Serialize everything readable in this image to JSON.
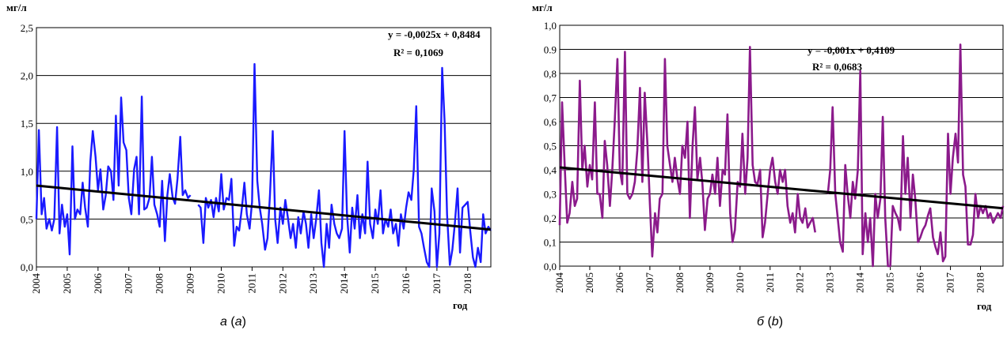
{
  "chart_data": [
    {
      "type": "line",
      "caption": {
        "letter": "а",
        "paren": "(",
        "letter2": "a",
        "close": ")"
      },
      "ylabel": "мг/л",
      "xlabel": "год",
      "ylim": [
        0,
        2.5
      ],
      "xlim": [
        2004,
        2018.75
      ],
      "y_ticks": [
        0,
        0.5,
        1.0,
        1.5,
        2.0,
        2.5
      ],
      "y_tick_labels": [
        "0,0",
        "0,5",
        "1,0",
        "1,5",
        "2,0",
        "2,5"
      ],
      "x_ticks": [
        2004,
        2005,
        2006,
        2007,
        2008,
        2009,
        2010,
        2011,
        2012,
        2013,
        2014,
        2015,
        2016,
        2017,
        2018
      ],
      "x_tick_labels": [
        "2004",
        "2005",
        "2006",
        "2007",
        "2008",
        "2009",
        "2010",
        "2011",
        "2012",
        "2013",
        "2014",
        "2015",
        "2016",
        "2017",
        "2018"
      ],
      "grid": true,
      "series_color": "#1a1aff",
      "trend_color": "#000000",
      "equation": "y = -0,0025x + 0,8484",
      "r2": "R² = 0,1069",
      "trend": {
        "x": [
          2004,
          2018.75
        ],
        "y": [
          0.85,
          0.39
        ]
      },
      "segments": [
        {
          "x": [
            2004.0,
            2004.08,
            2004.17,
            2004.25,
            2004.33,
            2004.42,
            2004.5,
            2004.58,
            2004.67,
            2004.75,
            2004.83,
            2004.92,
            2005.0,
            2005.08,
            2005.17,
            2005.25,
            2005.33,
            2005.42,
            2005.5,
            2005.58,
            2005.67,
            2005.75,
            2005.83,
            2005.92,
            2006.0,
            2006.08,
            2006.17,
            2006.25,
            2006.33,
            2006.42,
            2006.5,
            2006.58,
            2006.67,
            2006.75,
            2006.83,
            2006.92,
            2007.0,
            2007.08,
            2007.17,
            2007.25,
            2007.33,
            2007.42,
            2007.5,
            2007.58,
            2007.67,
            2007.75,
            2007.83,
            2007.92,
            2008.0,
            2008.08,
            2008.17,
            2008.25,
            2008.33,
            2008.42,
            2008.5,
            2008.58,
            2008.67,
            2008.75,
            2008.83,
            2008.92,
            2009.0
          ],
          "y": [
            0.5,
            1.43,
            0.55,
            0.72,
            0.4,
            0.5,
            0.38,
            0.5,
            1.46,
            0.35,
            0.65,
            0.42,
            0.55,
            0.13,
            1.26,
            0.5,
            0.6,
            0.55,
            0.88,
            0.62,
            0.42,
            1.1,
            1.42,
            1.15,
            0.8,
            1.02,
            0.6,
            0.75,
            1.05,
            1.0,
            0.7,
            1.58,
            0.85,
            1.77,
            1.3,
            1.22,
            0.72,
            0.55,
            1.02,
            1.15,
            0.55,
            1.78,
            0.6,
            0.62,
            0.72,
            1.15,
            0.65,
            0.55,
            0.42,
            0.9,
            0.27,
            0.75,
            0.97,
            0.73,
            0.66,
            0.92,
            1.36,
            0.75,
            0.8,
            0.72,
            0.75
          ]
        },
        {
          "x": [
            2009.25,
            2009.33,
            2009.42,
            2009.5,
            2009.58,
            2009.67,
            2009.75,
            2009.83,
            2009.92,
            2010.0,
            2010.08,
            2010.17,
            2010.25,
            2010.33,
            2010.42,
            2010.5,
            2010.58,
            2010.67,
            2010.75,
            2010.83,
            2010.92,
            2011.0,
            2011.08,
            2011.17,
            2011.25,
            2011.33,
            2011.42,
            2011.5,
            2011.58,
            2011.67,
            2011.75,
            2011.83,
            2011.92,
            2012.0,
            2012.08,
            2012.17,
            2012.25,
            2012.33,
            2012.42,
            2012.5,
            2012.58,
            2012.67,
            2012.75,
            2012.83,
            2012.92,
            2013.0,
            2013.08,
            2013.17,
            2013.25,
            2013.33,
            2013.42,
            2013.5,
            2013.58,
            2013.67,
            2013.75,
            2013.83,
            2013.92,
            2014.0,
            2014.08,
            2014.17,
            2014.25,
            2014.33,
            2014.42,
            2014.5,
            2014.58,
            2014.67,
            2014.75,
            2014.83,
            2014.92,
            2015.0,
            2015.08,
            2015.17,
            2015.25,
            2015.33,
            2015.42,
            2015.5,
            2015.58,
            2015.67,
            2015.75,
            2015.83,
            2015.92,
            2016.0,
            2016.08,
            2016.17,
            2016.25,
            2016.33,
            2016.42,
            2016.5,
            2016.58,
            2016.67,
            2016.75,
            2016.83,
            2016.92,
            2017.0,
            2017.08,
            2017.17,
            2017.25,
            2017.33,
            2017.42,
            2017.5,
            2017.58,
            2017.67,
            2017.75,
            2017.83,
            2017.92,
            2018.0,
            2018.08,
            2018.17,
            2018.25,
            2018.33,
            2018.42,
            2018.5,
            2018.58,
            2018.67,
            2018.75
          ],
          "y": [
            0.65,
            0.62,
            0.25,
            0.72,
            0.62,
            0.7,
            0.52,
            0.72,
            0.58,
            0.97,
            0.6,
            0.72,
            0.7,
            0.92,
            0.22,
            0.42,
            0.38,
            0.62,
            0.88,
            0.55,
            0.4,
            0.68,
            2.12,
            0.9,
            0.62,
            0.45,
            0.18,
            0.3,
            0.75,
            1.42,
            0.5,
            0.25,
            0.62,
            0.45,
            0.7,
            0.5,
            0.3,
            0.45,
            0.2,
            0.52,
            0.35,
            0.58,
            0.45,
            0.2,
            0.55,
            0.3,
            0.5,
            0.8,
            0.25,
            0.0,
            0.45,
            0.2,
            0.65,
            0.45,
            0.35,
            0.3,
            0.4,
            1.42,
            0.55,
            0.15,
            0.62,
            0.4,
            0.75,
            0.3,
            0.55,
            0.35,
            1.1,
            0.45,
            0.3,
            0.6,
            0.45,
            0.8,
            0.35,
            0.5,
            0.42,
            0.6,
            0.35,
            0.45,
            0.22,
            0.55,
            0.4,
            0.62,
            0.78,
            0.7,
            1.02,
            1.68,
            0.42,
            0.35,
            0.2,
            0.05,
            0.0,
            0.82,
            0.58,
            0.0,
            0.35,
            2.08,
            1.52,
            0.55,
            0.02,
            0.18,
            0.45,
            0.82,
            0.15,
            0.62,
            0.65,
            0.68,
            0.38,
            0.1,
            0.0,
            0.2,
            0.05,
            0.55,
            0.35,
            0.42,
            0.38
          ]
        }
      ]
    },
    {
      "type": "line",
      "caption": {
        "letter": "б",
        "paren": "(",
        "letter2": "b",
        "close": ")"
      },
      "ylabel": "мг/л",
      "xlabel": "год",
      "ylim": [
        0,
        1.0
      ],
      "xlim": [
        2004,
        2018.75
      ],
      "y_ticks": [
        0,
        0.1,
        0.2,
        0.3,
        0.4,
        0.5,
        0.6,
        0.7,
        0.8,
        0.9,
        1.0
      ],
      "y_tick_labels": [
        "0,0",
        "0,1",
        "0,2",
        "0,3",
        "0,4",
        "0,5",
        "0,6",
        "0,7",
        "0,8",
        "0.9",
        "1,0"
      ],
      "x_ticks": [
        2004,
        2005,
        2006,
        2007,
        2008,
        2009,
        2010,
        2011,
        2012,
        2013,
        2014,
        2015,
        2016,
        2017,
        2018
      ],
      "x_tick_labels": [
        "2004",
        "2005",
        "2006",
        "2007",
        "2008",
        "2009",
        "2010",
        "2011",
        "2012",
        "2013",
        "2014",
        "2015",
        "2016",
        "2017",
        "2018"
      ],
      "grid": true,
      "series_color": "#8b1a8b",
      "trend_color": "#000000",
      "equation": "y = -0,001x + 0,4109",
      "r2": "R² = 0,0683",
      "trend": {
        "x": [
          2004,
          2018.75
        ],
        "y": [
          0.41,
          0.24
        ]
      },
      "segments": [
        {
          "x": [
            2004.0,
            2004.08,
            2004.17,
            2004.25,
            2004.33,
            2004.42,
            2004.5,
            2004.58,
            2004.67,
            2004.75,
            2004.83,
            2004.92,
            2005.0,
            2005.08,
            2005.17,
            2005.25,
            2005.33,
            2005.42,
            2005.5,
            2005.58,
            2005.67,
            2005.75,
            2005.83,
            2005.92,
            2006.0,
            2006.08,
            2006.17,
            2006.25,
            2006.33,
            2006.42,
            2006.5,
            2006.58,
            2006.67,
            2006.75,
            2006.83,
            2006.92,
            2007.0,
            2007.08,
            2007.17,
            2007.25,
            2007.33,
            2007.42,
            2007.5,
            2007.58,
            2007.67,
            2007.75,
            2007.83,
            2007.92,
            2008.0,
            2008.08,
            2008.17,
            2008.25,
            2008.33,
            2008.42,
            2008.5,
            2008.58,
            2008.67,
            2008.75,
            2008.83,
            2008.92,
            2009.0,
            2009.08,
            2009.17,
            2009.25,
            2009.33,
            2009.42,
            2009.5,
            2009.58,
            2009.67,
            2009.75,
            2009.83,
            2009.92,
            2010.0,
            2010.08,
            2010.17,
            2010.25,
            2010.33,
            2010.42,
            2010.5,
            2010.58,
            2010.67,
            2010.75,
            2010.83,
            2010.92,
            2011.0,
            2011.08,
            2011.17,
            2011.25,
            2011.33,
            2011.42,
            2011.5,
            2011.58,
            2011.67,
            2011.75,
            2011.83,
            2011.92,
            2012.0,
            2012.08,
            2012.17,
            2012.25,
            2012.33,
            2012.42,
            2012.5
          ],
          "y": [
            0.17,
            0.68,
            0.4,
            0.18,
            0.22,
            0.35,
            0.25,
            0.28,
            0.77,
            0.4,
            0.5,
            0.33,
            0.42,
            0.36,
            0.68,
            0.3,
            0.3,
            0.2,
            0.52,
            0.42,
            0.25,
            0.4,
            0.6,
            0.86,
            0.4,
            0.34,
            0.89,
            0.3,
            0.28,
            0.3,
            0.35,
            0.48,
            0.74,
            0.35,
            0.72,
            0.5,
            0.26,
            0.04,
            0.22,
            0.14,
            0.28,
            0.3,
            0.86,
            0.5,
            0.42,
            0.35,
            0.45,
            0.36,
            0.3,
            0.5,
            0.45,
            0.6,
            0.2,
            0.5,
            0.66,
            0.36,
            0.45,
            0.34,
            0.15,
            0.28,
            0.3,
            0.38,
            0.3,
            0.45,
            0.25,
            0.4,
            0.38,
            0.63,
            0.22,
            0.1,
            0.15,
            0.35,
            0.33,
            0.55,
            0.3,
            0.45,
            0.91,
            0.42,
            0.35,
            0.34,
            0.4,
            0.12,
            0.18,
            0.3,
            0.4,
            0.45,
            0.35,
            0.3,
            0.4,
            0.35,
            0.4,
            0.25,
            0.18,
            0.22,
            0.14,
            0.3,
            0.2,
            0.18,
            0.24,
            0.16,
            0.18,
            0.2,
            0.14
          ]
        },
        {
          "x": [
            2012.92,
            2013.0,
            2013.08,
            2013.17,
            2013.25,
            2013.33,
            2013.42,
            2013.5,
            2013.58,
            2013.67,
            2013.75,
            2013.83,
            2013.92,
            2014.0,
            2014.08,
            2014.17,
            2014.25,
            2014.33,
            2014.42,
            2014.5,
            2014.58,
            2014.67,
            2014.75,
            2014.83,
            2014.92,
            2015.0,
            2015.08,
            2015.17,
            2015.25,
            2015.33,
            2015.42,
            2015.5,
            2015.58,
            2015.67,
            2015.75,
            2015.83,
            2015.92,
            2016.0,
            2016.08,
            2016.17,
            2016.25,
            2016.33,
            2016.42,
            2016.5,
            2016.58,
            2016.67,
            2016.75,
            2016.83,
            2016.92,
            2017.0,
            2017.08,
            2017.17,
            2017.25,
            2017.33,
            2017.42,
            2017.5,
            2017.58,
            2017.67,
            2017.75,
            2017.83,
            2017.92,
            2018.0,
            2018.08,
            2018.17,
            2018.25,
            2018.33,
            2018.42,
            2018.5,
            2018.58,
            2018.67,
            2018.75
          ],
          "y": [
            0.3,
            0.4,
            0.66,
            0.3,
            0.2,
            0.1,
            0.06,
            0.42,
            0.3,
            0.2,
            0.35,
            0.28,
            0.4,
            0.81,
            0.05,
            0.22,
            0.1,
            0.2,
            0.0,
            0.3,
            0.2,
            0.28,
            0.62,
            0.2,
            0.0,
            0.0,
            0.25,
            0.22,
            0.2,
            0.15,
            0.54,
            0.3,
            0.45,
            0.2,
            0.38,
            0.28,
            0.1,
            0.12,
            0.15,
            0.17,
            0.21,
            0.24,
            0.12,
            0.08,
            0.05,
            0.14,
            0.02,
            0.04,
            0.55,
            0.3,
            0.45,
            0.55,
            0.43,
            0.92,
            0.38,
            0.33,
            0.09,
            0.09,
            0.13,
            0.3,
            0.2,
            0.25,
            0.22,
            0.25,
            0.2,
            0.22,
            0.18,
            0.2,
            0.22,
            0.2,
            0.25
          ]
        }
      ]
    }
  ]
}
